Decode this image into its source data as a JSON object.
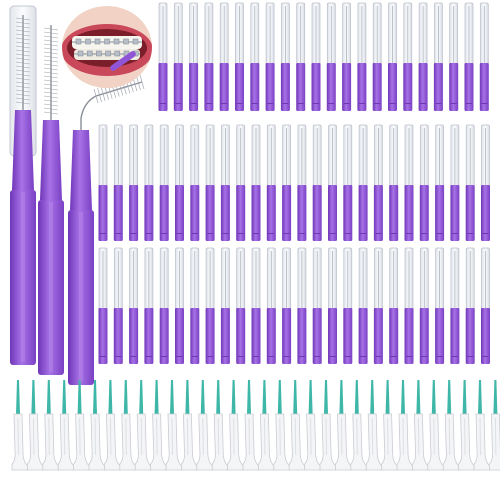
{
  "image": {
    "description_kind": "product-photo",
    "colors": {
      "background": "#ffffff",
      "handle_purple": "#8f55d6",
      "handle_purple_dark": "#6f36b8",
      "handle_purple_light": "#b88ae8",
      "cap_clear": "#eef0f4",
      "cap_edge": "#b9bec8",
      "floss_handle": "#f4f5f7",
      "floss_edge": "#c9ccd2",
      "floss_tip": "#3fb7a8",
      "gum_pink": "#d97b86",
      "lip_red": "#c9485a"
    },
    "icons": [
      "mouth-braces-photo",
      "interdental-brush",
      "floss-pick"
    ]
  }
}
